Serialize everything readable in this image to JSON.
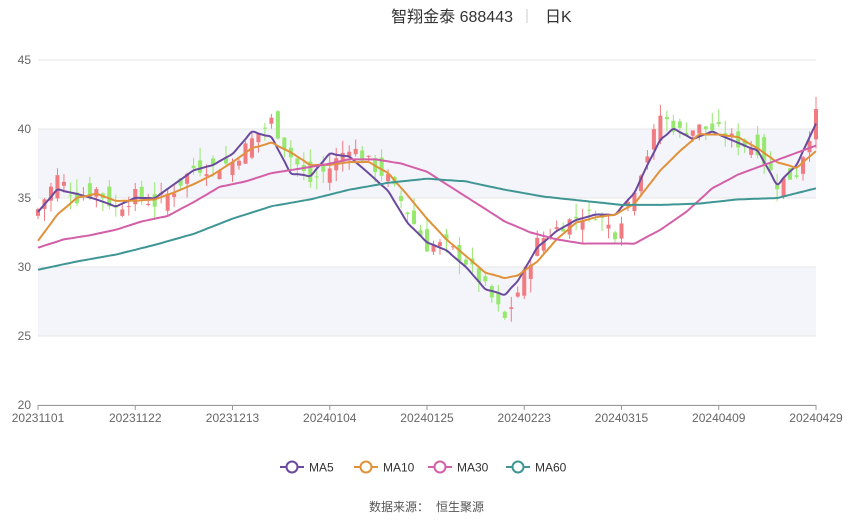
{
  "title": {
    "name_code": "智翔金泰 688443",
    "period": "日K"
  },
  "source_label": "数据来源：",
  "source_value": "恒生聚源",
  "colors": {
    "up": "#f07c82",
    "down": "#96e86e",
    "MA5": "#6b4a9e",
    "MA10": "#e0913a",
    "MA30": "#d35fa8",
    "MA60": "#3f9694",
    "grid": "#e6e6e6",
    "band": "#f4f5fa",
    "axis": "#666666"
  },
  "chart_data": {
    "type": "candlestick",
    "ylim": [
      20,
      45
    ],
    "yticks": [
      "20",
      "25",
      "30",
      "35",
      "40",
      "45"
    ],
    "xticks": [
      "20231101",
      "20231122",
      "20231213",
      "20240104",
      "20240125",
      "20240223",
      "20240315",
      "20240409",
      "20240429"
    ],
    "num_bars": 121,
    "legend": [
      {
        "key": "MA5",
        "label": "MA5"
      },
      {
        "key": "MA10",
        "label": "MA10"
      },
      {
        "key": "MA30",
        "label": "MA30"
      },
      {
        "key": "MA60",
        "label": "MA60"
      }
    ],
    "close_anchors": [
      [
        0,
        34.2
      ],
      [
        3,
        36.5
      ],
      [
        6,
        35.0
      ],
      [
        9,
        35.6
      ],
      [
        12,
        34.2
      ],
      [
        15,
        35.2
      ],
      [
        18,
        34.6
      ],
      [
        21,
        35.6
      ],
      [
        24,
        37.2
      ],
      [
        27,
        37.2
      ],
      [
        30,
        37.6
      ],
      [
        33,
        39.2
      ],
      [
        36,
        40.6
      ],
      [
        39,
        38.0
      ],
      [
        42,
        36.2
      ],
      [
        45,
        37.2
      ],
      [
        48,
        38.8
      ],
      [
        51,
        37.6
      ],
      [
        54,
        36.4
      ],
      [
        57,
        34.0
      ],
      [
        60,
        31.5
      ],
      [
        63,
        31.6
      ],
      [
        66,
        30.4
      ],
      [
        69,
        28.5
      ],
      [
        72,
        26.2
      ],
      [
        74,
        28.2
      ],
      [
        77,
        31.8
      ],
      [
        80,
        32.8
      ],
      [
        83,
        33.6
      ],
      [
        86,
        33.9
      ],
      [
        89,
        32.5
      ],
      [
        92,
        35.8
      ],
      [
        94,
        38.2
      ],
      [
        96,
        41.0
      ],
      [
        99,
        39.8
      ],
      [
        102,
        40.1
      ],
      [
        105,
        39.9
      ],
      [
        108,
        39.0
      ],
      [
        111,
        38.6
      ],
      [
        114,
        36.0
      ],
      [
        117,
        36.8
      ],
      [
        120,
        41.0
      ]
    ],
    "ma_anchors": {
      "MA5": [
        [
          0,
          34.0
        ],
        [
          3,
          35.6
        ],
        [
          6,
          35.3
        ],
        [
          9,
          34.9
        ],
        [
          12,
          34.4
        ],
        [
          15,
          35.0
        ],
        [
          18,
          35.0
        ],
        [
          21,
          36.0
        ],
        [
          24,
          37.0
        ],
        [
          27,
          37.4
        ],
        [
          30,
          38.2
        ],
        [
          33,
          39.8
        ],
        [
          36,
          39.4
        ],
        [
          39,
          36.8
        ],
        [
          42,
          36.6
        ],
        [
          45,
          38.2
        ],
        [
          48,
          38.0
        ],
        [
          51,
          36.8
        ],
        [
          54,
          35.5
        ],
        [
          57,
          33.2
        ],
        [
          60,
          31.8
        ],
        [
          63,
          31.2
        ],
        [
          66,
          30.0
        ],
        [
          69,
          28.4
        ],
        [
          72,
          28.0
        ],
        [
          74,
          29.0
        ],
        [
          77,
          31.4
        ],
        [
          80,
          32.6
        ],
        [
          83,
          33.4
        ],
        [
          86,
          33.8
        ],
        [
          89,
          33.8
        ],
        [
          92,
          35.4
        ],
        [
          94,
          37.4
        ],
        [
          96,
          39.2
        ],
        [
          98,
          40.0
        ],
        [
          101,
          39.3
        ],
        [
          104,
          39.8
        ],
        [
          107,
          39.2
        ],
        [
          111,
          38.4
        ],
        [
          114,
          36.0
        ],
        [
          117,
          37.4
        ],
        [
          120,
          40.4
        ]
      ],
      "MA10": [
        [
          0,
          31.9
        ],
        [
          3,
          33.8
        ],
        [
          6,
          35.0
        ],
        [
          9,
          35.3
        ],
        [
          12,
          34.8
        ],
        [
          15,
          34.8
        ],
        [
          18,
          34.9
        ],
        [
          21,
          35.4
        ],
        [
          24,
          36.0
        ],
        [
          27,
          36.7
        ],
        [
          30,
          37.6
        ],
        [
          33,
          38.6
        ],
        [
          36,
          39.0
        ],
        [
          39,
          38.3
        ],
        [
          42,
          37.4
        ],
        [
          45,
          37.4
        ],
        [
          48,
          37.6
        ],
        [
          51,
          37.6
        ],
        [
          54,
          36.8
        ],
        [
          57,
          35.2
        ],
        [
          60,
          33.5
        ],
        [
          63,
          32.0
        ],
        [
          66,
          30.8
        ],
        [
          69,
          29.6
        ],
        [
          72,
          29.2
        ],
        [
          74,
          29.4
        ],
        [
          77,
          30.4
        ],
        [
          80,
          32.0
        ],
        [
          83,
          33.2
        ],
        [
          86,
          33.6
        ],
        [
          89,
          33.8
        ],
        [
          92,
          34.6
        ],
        [
          94,
          35.8
        ],
        [
          96,
          37.0
        ],
        [
          99,
          38.4
        ],
        [
          102,
          39.6
        ],
        [
          105,
          39.6
        ],
        [
          108,
          39.4
        ],
        [
          111,
          38.6
        ],
        [
          114,
          37.6
        ],
        [
          117,
          37.2
        ],
        [
          120,
          38.4
        ]
      ],
      "MA30": [
        [
          0,
          31.4
        ],
        [
          4,
          32.0
        ],
        [
          8,
          32.3
        ],
        [
          12,
          32.7
        ],
        [
          16,
          33.3
        ],
        [
          20,
          33.7
        ],
        [
          24,
          34.7
        ],
        [
          28,
          35.8
        ],
        [
          32,
          36.2
        ],
        [
          36,
          36.8
        ],
        [
          40,
          37.1
        ],
        [
          44,
          37.4
        ],
        [
          48,
          37.8
        ],
        [
          52,
          37.8
        ],
        [
          56,
          37.5
        ],
        [
          60,
          36.9
        ],
        [
          64,
          35.7
        ],
        [
          68,
          34.5
        ],
        [
          72,
          33.3
        ],
        [
          76,
          32.5
        ],
        [
          80,
          32.0
        ],
        [
          84,
          31.7
        ],
        [
          88,
          31.7
        ],
        [
          92,
          31.7
        ],
        [
          96,
          32.7
        ],
        [
          100,
          34.0
        ],
        [
          104,
          35.7
        ],
        [
          108,
          36.7
        ],
        [
          112,
          37.4
        ],
        [
          116,
          38.1
        ],
        [
          120,
          38.8
        ]
      ],
      "MA60": [
        [
          0,
          29.8
        ],
        [
          6,
          30.4
        ],
        [
          12,
          30.9
        ],
        [
          18,
          31.6
        ],
        [
          24,
          32.4
        ],
        [
          30,
          33.5
        ],
        [
          36,
          34.4
        ],
        [
          42,
          34.9
        ],
        [
          48,
          35.6
        ],
        [
          54,
          36.1
        ],
        [
          60,
          36.4
        ],
        [
          66,
          36.2
        ],
        [
          72,
          35.6
        ],
        [
          78,
          35.1
        ],
        [
          84,
          34.8
        ],
        [
          90,
          34.5
        ],
        [
          96,
          34.5
        ],
        [
          102,
          34.6
        ],
        [
          108,
          34.9
        ],
        [
          114,
          35.0
        ],
        [
          120,
          35.7
        ]
      ]
    }
  }
}
